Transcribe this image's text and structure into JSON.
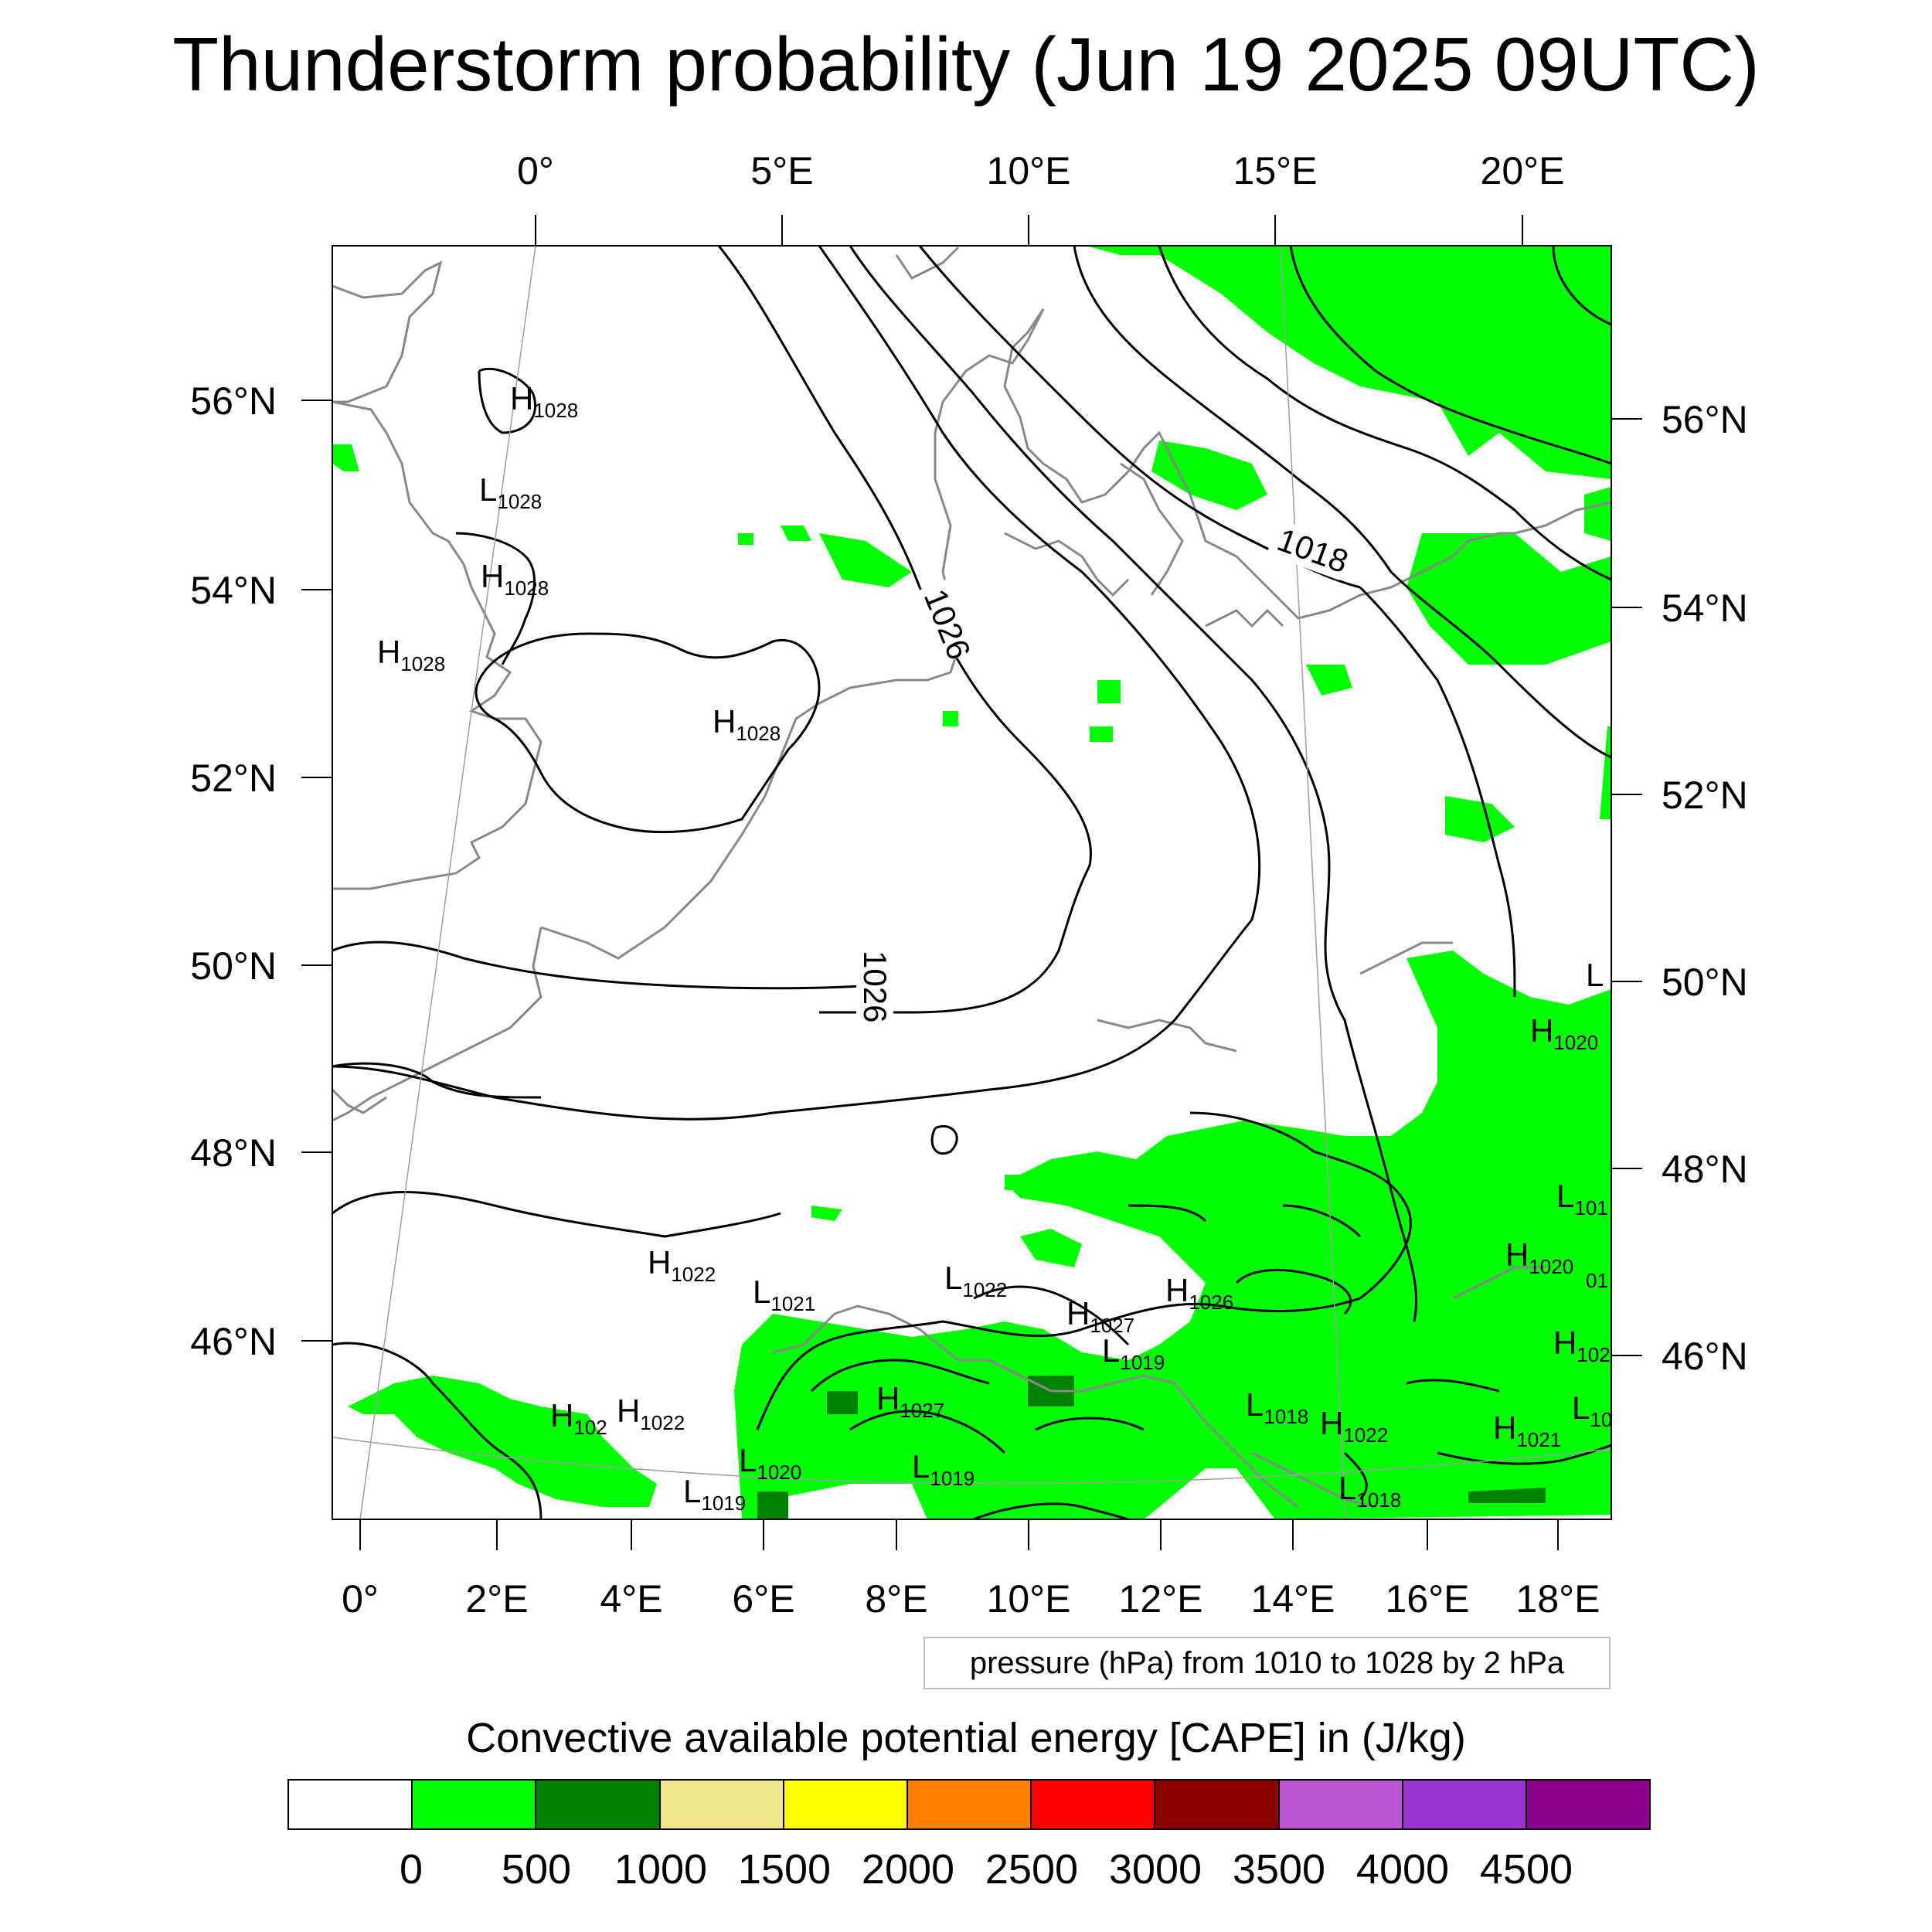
{
  "title": "Thunderstorm probability (Jun 19 2025 09UTC)",
  "top_lon_labels": [
    "0°",
    "5°E",
    "10°E",
    "15°E",
    "20°E"
  ],
  "bottom_lon_labels": [
    "0°",
    "2°E",
    "4°E",
    "6°E",
    "8°E",
    "10°E",
    "12°E",
    "14°E",
    "16°E",
    "18°E"
  ],
  "left_lat_labels": [
    "56°N",
    "54°N",
    "52°N",
    "50°N",
    "48°N",
    "46°N"
  ],
  "right_lat_labels": [
    "56°N",
    "54°N",
    "52°N",
    "50°N",
    "48°N",
    "46°N"
  ],
  "contour_labels": [
    "1026",
    "1026",
    "1018"
  ],
  "pressure_markers": [
    {
      "letter": "H",
      "value": "1028"
    },
    {
      "letter": "L",
      "value": "1028"
    },
    {
      "letter": "H",
      "value": "1028"
    },
    {
      "letter": "H",
      "value": "1028"
    },
    {
      "letter": "H",
      "value": "1028"
    },
    {
      "letter": "H",
      "value": "1022"
    },
    {
      "letter": "L",
      "value": "1021"
    },
    {
      "letter": "L",
      "value": "1022"
    },
    {
      "letter": "H",
      "value": "1027"
    },
    {
      "letter": "H",
      "value": "1026"
    },
    {
      "letter": "L",
      "value": "1019"
    },
    {
      "letter": "H",
      "value": "1027"
    },
    {
      "letter": "H",
      "value": "102"
    },
    {
      "letter": "H",
      "value": "1022"
    },
    {
      "letter": "L",
      "value": "1020"
    },
    {
      "letter": "L",
      "value": "1019"
    },
    {
      "letter": "L",
      "value": "1019"
    },
    {
      "letter": "L",
      "value": "1018"
    },
    {
      "letter": "H",
      "value": "1022"
    },
    {
      "letter": "L",
      "value": "1018"
    },
    {
      "letter": "H",
      "value": "1021"
    },
    {
      "letter": "L",
      "value": "10"
    },
    {
      "letter": "H",
      "value": "102"
    },
    {
      "letter": "H",
      "value": "1020"
    },
    {
      "letter": "L",
      "value": "101"
    },
    {
      "letter": "H",
      "value": "1020"
    },
    {
      "letter": "",
      "value": "01"
    },
    {
      "letter": "L",
      "value": ""
    }
  ],
  "contour_note": "pressure (hPa) from 1010 to 1028 by 2 hPa",
  "colorbar": {
    "title": "Convective available potential energy [CAPE] in (J/kg)",
    "colors": [
      "#ffffff",
      "#00ff00",
      "#008000",
      "#f0e68c",
      "#ffff00",
      "#ff8000",
      "#ff0000",
      "#8b0000",
      "#ba55d3",
      "#9932cc",
      "#8b008b"
    ],
    "tick_labels": [
      "0",
      "500",
      "1000",
      "1500",
      "2000",
      "2500",
      "3000",
      "3500",
      "4000",
      "4500"
    ]
  }
}
